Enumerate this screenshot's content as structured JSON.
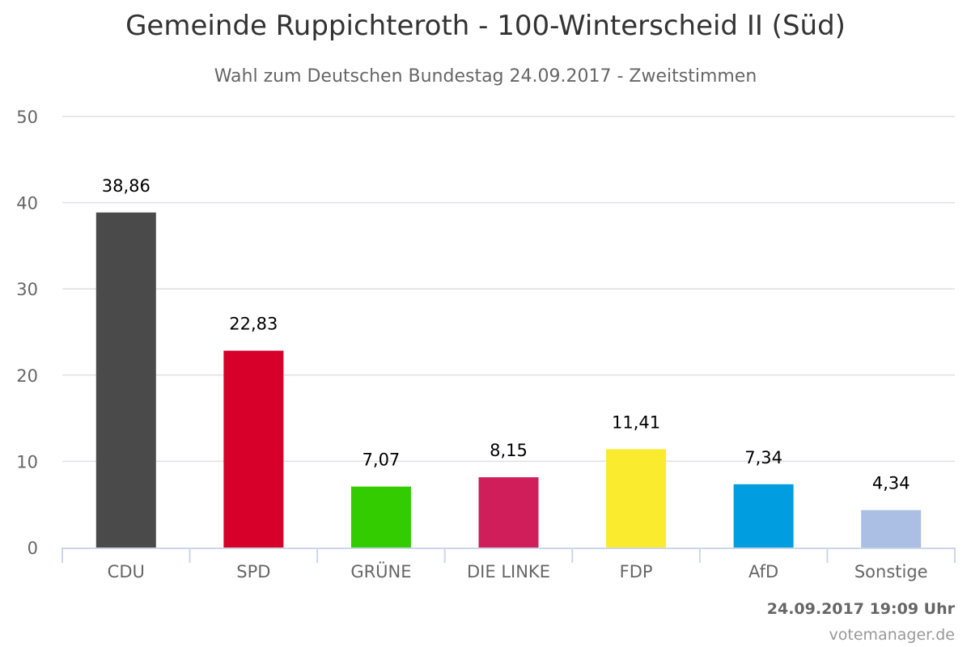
{
  "chart_data": {
    "type": "bar",
    "title": "Gemeinde Ruppichteroth - 100-Winterscheid II (Süd)",
    "subtitle": "Wahl zum Deutschen Bundestag 24.09.2017 - Zweitstimmen",
    "xlabel": "",
    "ylabel": "",
    "ylim": [
      0,
      50
    ],
    "yticks": [
      0,
      10,
      20,
      30,
      40,
      50
    ],
    "grid": true,
    "categories": [
      "CDU",
      "SPD",
      "GRÜNE",
      "DIE LINKE",
      "FDP",
      "AfD",
      "Sonstige"
    ],
    "values": [
      38.86,
      22.83,
      7.07,
      8.15,
      11.41,
      7.34,
      4.34
    ],
    "value_labels": [
      "38,86",
      "22,83",
      "7,07",
      "8,15",
      "11,41",
      "7,34",
      "4,34"
    ],
    "colors": [
      "#4a4a4a",
      "#d6002a",
      "#33cc00",
      "#d01e5a",
      "#fbeb2f",
      "#009ee0",
      "#aabfe3"
    ]
  },
  "footer": {
    "timestamp": "24.09.2017 19:09 Uhr",
    "credit": "votemanager.de"
  }
}
